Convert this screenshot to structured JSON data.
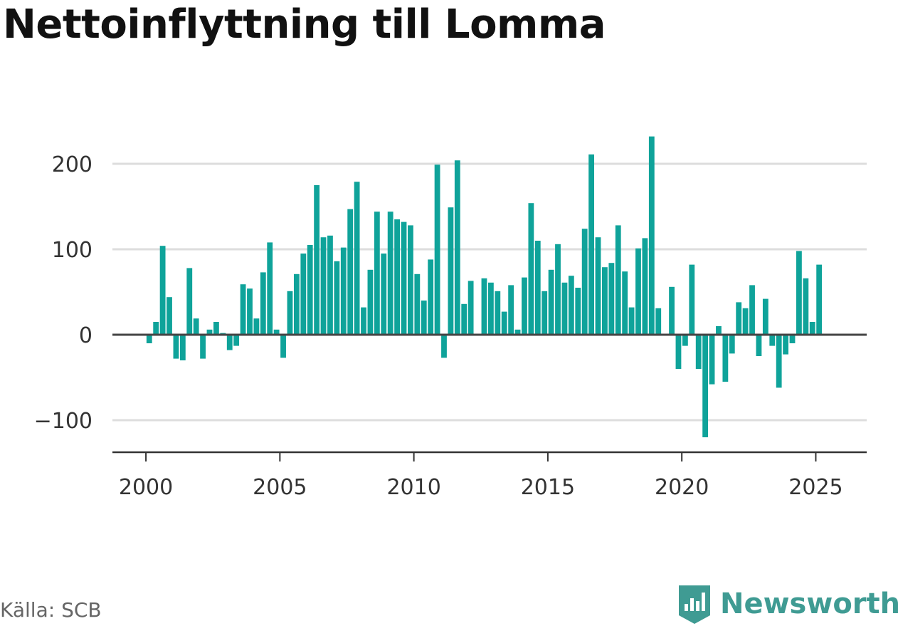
{
  "header": {
    "title": "Nettoinflyttning till Lomma"
  },
  "footer": {
    "source": "Källa: SCB",
    "brand": "Newsworthy"
  },
  "colors": {
    "bar": "#0fa39a",
    "grid": "#dddddd",
    "axis": "#333333",
    "brand": "#3f9b93"
  },
  "icons": {
    "brand_logo": "newsworthy-chart-icon"
  },
  "chart_data": {
    "type": "bar",
    "title": "Nettoinflyttning till Lomma",
    "xlabel": "",
    "ylabel": "",
    "ylim": [
      -130,
      235
    ],
    "yticks": [
      200,
      100,
      0,
      -100
    ],
    "ytick_labels": [
      "200",
      "100",
      "0",
      "−100"
    ],
    "xticks": [
      2000,
      2005,
      2010,
      2015,
      2020,
      2025
    ],
    "xlim": [
      1998.75,
      2026.9
    ],
    "grid": true,
    "legend": "none",
    "x": [
      2000.125,
      2000.375,
      2000.625,
      2000.875,
      2001.125,
      2001.375,
      2001.625,
      2001.875,
      2002.125,
      2002.375,
      2002.625,
      2002.875,
      2003.125,
      2003.375,
      2003.625,
      2003.875,
      2004.125,
      2004.375,
      2004.625,
      2004.875,
      2005.125,
      2005.375,
      2005.625,
      2005.875,
      2006.125,
      2006.375,
      2006.625,
      2006.875,
      2007.125,
      2007.375,
      2007.625,
      2007.875,
      2008.125,
      2008.375,
      2008.625,
      2008.875,
      2009.125,
      2009.375,
      2009.625,
      2009.875,
      2010.125,
      2010.375,
      2010.625,
      2010.875,
      2011.125,
      2011.375,
      2011.625,
      2011.875,
      2012.125,
      2012.375,
      2012.625,
      2012.875,
      2013.125,
      2013.375,
      2013.625,
      2013.875,
      2014.125,
      2014.375,
      2014.625,
      2014.875,
      2015.125,
      2015.375,
      2015.625,
      2015.875,
      2016.125,
      2016.375,
      2016.625,
      2016.875,
      2017.125,
      2017.375,
      2017.625,
      2017.875,
      2018.125,
      2018.375,
      2018.625,
      2018.875,
      2019.125,
      2019.375,
      2019.625,
      2019.875,
      2020.125,
      2020.375,
      2020.625,
      2020.875,
      2021.125,
      2021.375,
      2021.625,
      2021.875,
      2022.125,
      2022.375,
      2022.625,
      2022.875,
      2023.125,
      2023.375,
      2023.625,
      2023.875,
      2024.125,
      2024.375,
      2024.625,
      2024.875,
      2025.125,
      2025.375
    ],
    "values": [
      -10,
      15,
      104,
      44,
      -28,
      -30,
      78,
      19,
      -28,
      6,
      15,
      2,
      -18,
      -13,
      59,
      54,
      19,
      73,
      108,
      6,
      -27,
      51,
      71,
      95,
      105,
      175,
      114,
      116,
      86,
      102,
      147,
      179,
      32,
      76,
      144,
      95,
      144,
      135,
      132,
      128,
      71,
      40,
      88,
      199,
      -27,
      149,
      204,
      36,
      63,
      0,
      66,
      61,
      51,
      27,
      58,
      6,
      67,
      154,
      110,
      51,
      76,
      106,
      61,
      69,
      55,
      124,
      211,
      114,
      79,
      84,
      128,
      74,
      32,
      101,
      113,
      232,
      31,
      0,
      56,
      -40,
      -13,
      82,
      -40,
      -120,
      -58,
      10,
      -55,
      -22,
      38,
      31,
      58,
      -25,
      42,
      -13,
      -62,
      -23,
      -10,
      98,
      66,
      15,
      82,
      0
    ]
  }
}
